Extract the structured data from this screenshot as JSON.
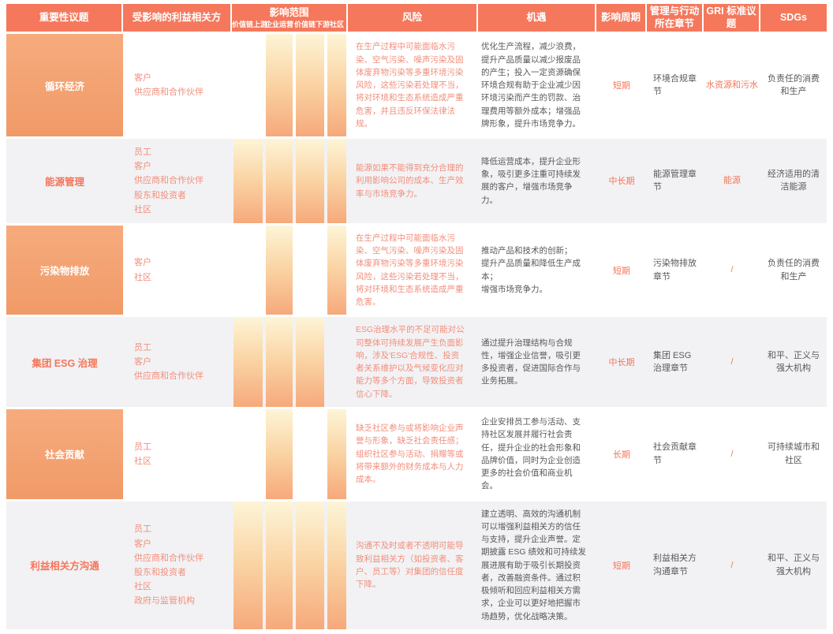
{
  "colors": {
    "header_bg": "#F5785C",
    "accent_orange": "#F4755A",
    "soft_coral_text": "#F28E7B",
    "issue_block_top": "#F6AB7D",
    "issue_block_bottom": "#F19A68",
    "alt_row_bg": "#F2F2F4",
    "bar_gradient_top": "#FDF5D7",
    "bar_gradient_bottom": "#F6A97B",
    "dark_text": "#58585A"
  },
  "table": {
    "headers": {
      "issue": "重要性议题",
      "stakeholders": "受影响的利益相关方",
      "scope": "影响范围",
      "scope_cols": [
        "价值链上游",
        "企业运营",
        "价值链下游",
        "社区"
      ],
      "risk": "风险",
      "opportunity": "机遇",
      "period": "影响周期",
      "chapter": "管理与行动所在章节",
      "gri": "GRI 标准议题",
      "sdgs": "SDGs"
    },
    "rows": [
      {
        "issue": "循环经济",
        "stakeholders": [
          "客户",
          "供应商和合作伙伴"
        ],
        "scope": [
          false,
          true,
          true,
          true
        ],
        "risk": "在生产过程中可能面临水污染、空气污染、噪声污染及固体废弃物污染等多重环境污染风险，这些污染若处理不当，将对环境和生态系统造成严重危害，并且违反环保法律法规。",
        "opportunity": "优化生产流程，减少浪费，提升产品质量以减少报废品的产生；投入一定资源确保环境合规有助于企业减少因环境污染而产生的罚款、治理费用等额外成本；增强品牌形象，提升市场竞争力。",
        "period": "短期",
        "chapter": "环境合规章节",
        "gri": "水资源和污水",
        "sdgs": "负责任的消费和生产"
      },
      {
        "issue": "能源管理",
        "stakeholders": [
          "员工",
          "客户",
          "供应商和合作伙伴",
          "股东和投资者",
          "社区"
        ],
        "scope": [
          true,
          true,
          true,
          true
        ],
        "risk": "能源如果不能得到充分合理的利用影响公司的成本、生产效率与市场竞争力。",
        "opportunity": "降低运营成本，提升企业形象，吸引更多注重可持续发展的客户，增强市场竞争力。",
        "period": "中长期",
        "chapter": "能源管理章节",
        "gri": "能源",
        "sdgs": "经济适用的清洁能源"
      },
      {
        "issue": "污染物排放",
        "stakeholders": [
          "客户",
          "社区"
        ],
        "scope": [
          false,
          true,
          false,
          true
        ],
        "risk": "在生产过程中可能面临水污染、空气污染、噪声污染及固体废弃物污染等多重环境污染风险，这些污染若处理不当，将对环境和生态系统造成严重危害。",
        "opportunity": "推动产品和技术的创新；\n提升产品质量和降低生产成本；\n增强市场竞争力。",
        "period": "短期",
        "chapter": "污染物排放章节",
        "gri": "/",
        "sdgs": "负责任的消费和生产"
      },
      {
        "issue": "集团 ESG 治理",
        "stakeholders": [
          "员工",
          "客户",
          "供应商和合作伙伴"
        ],
        "scope": [
          true,
          true,
          true,
          false
        ],
        "risk": "ESG治理水平的不足可能对公司整体可持续发展产生负面影响，涉及'ESG'合规性、投资者关系维护以及气候变化应对能力等多个方面，导致投资者信心下降。",
        "opportunity": "通过提升治理结构与合规性，增强企业信誉，吸引更多投资者，促进国际合作与业务拓展。",
        "period": "中长期",
        "chapter": "集团 ESG 治理章节",
        "gri": "/",
        "sdgs": "和平、正义与强大机构"
      },
      {
        "issue": "社会贡献",
        "stakeholders": [
          "员工",
          "社区"
        ],
        "scope": [
          false,
          true,
          false,
          true
        ],
        "risk": "缺乏社区参与或将影响企业声誉与形象，缺乏社会责任感；组织社区参与活动、捐赠等或将带来额外的财务成本与人力成本。",
        "opportunity": "企业安排员工参与活动、支持社区发展并履行社会责任，提升企业的社会形象和品牌价值，同时为企业创造更多的社会价值和商业机会。",
        "period": "长期",
        "chapter": "社会贡献章节",
        "gri": "/",
        "sdgs": "可持续城市和社区"
      },
      {
        "issue": "利益相关方沟通",
        "stakeholders": [
          "员工",
          "客户",
          "供应商和合作伙伴",
          "股东和投资者",
          "社区",
          "政府与监管机构"
        ],
        "scope": [
          true,
          true,
          true,
          true
        ],
        "risk": "沟通不及时或者不透明可能导致利益相关方（如投资者、客户、员工等）对集团的信任度下降。",
        "opportunity": "建立透明、高效的沟通机制可以增强利益相关方的信任与支持，提升企业声誉。定期披露 ESG 绩效和可持续发展进展有助于吸引长期投资者，改善融资条件。通过积极倾听和回应利益相关方需求，企业可以更好地把握市场趋势，优化战略决策。",
        "period": "短期",
        "chapter": "利益相关方沟通章节",
        "gri": "/",
        "sdgs": "和平、正义与强大机构"
      }
    ]
  }
}
